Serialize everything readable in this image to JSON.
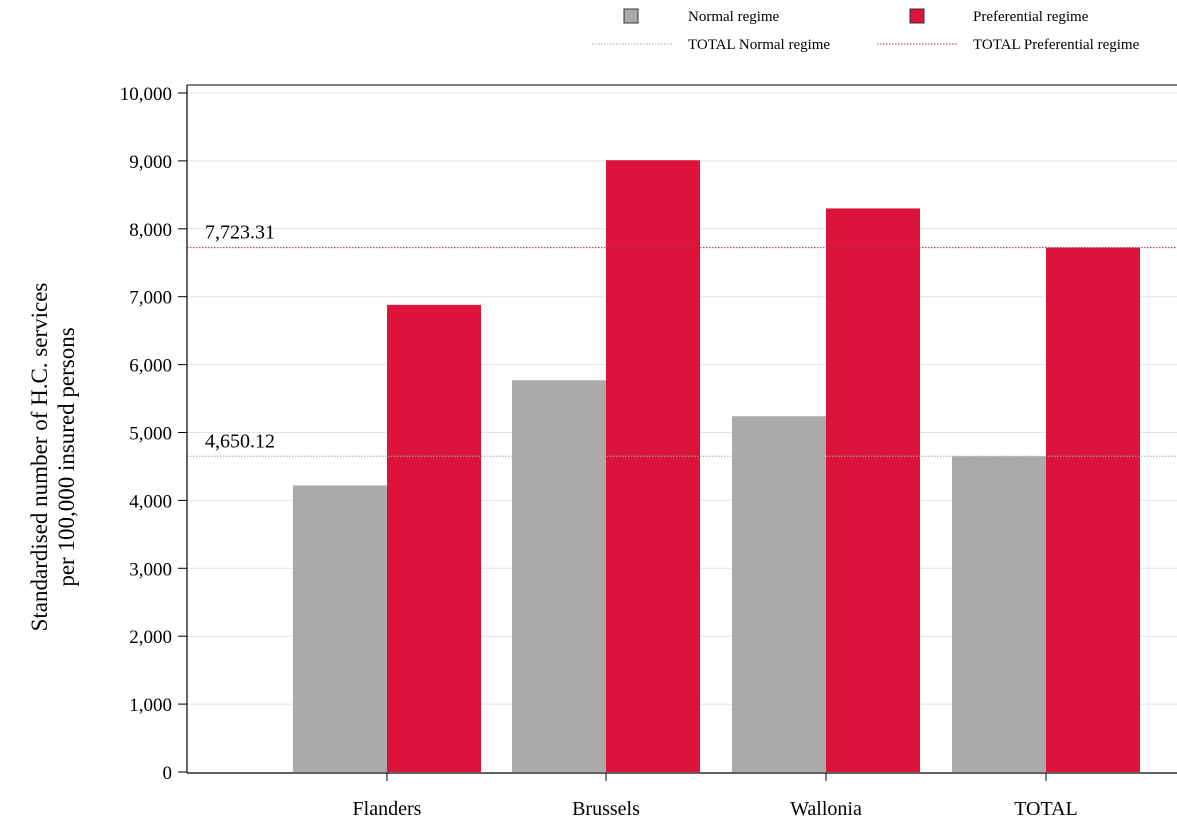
{
  "chart_data": {
    "type": "bar",
    "categories": [
      "Flanders",
      "Brussels",
      "Wallonia",
      "TOTAL"
    ],
    "series": [
      {
        "name": "Normal regime",
        "values": [
          4220,
          5770,
          5240,
          4650.12
        ],
        "color": "#aaaaaa"
      },
      {
        "name": "Preferential regime",
        "values": [
          6880,
          9010,
          8300,
          7723.31
        ],
        "color": "#dc143c"
      }
    ],
    "reference_lines": [
      {
        "name": "TOTAL Normal regime",
        "value": 4650.12,
        "label": "4,650.12",
        "color": "#aaaaaa",
        "style": "dotted"
      },
      {
        "name": "TOTAL Preferential regime",
        "value": 7723.31,
        "label": "7,723.31",
        "color": "#b03050",
        "style": "dotted"
      }
    ],
    "ylabel_line1": "Standardised number of H.C. services",
    "ylabel_line2": "per 100,000 insured persons",
    "xlabel": "",
    "ylim": [
      0,
      10000
    ],
    "yticks": [
      0,
      1000,
      2000,
      3000,
      4000,
      5000,
      6000,
      7000,
      8000,
      9000,
      10000
    ],
    "ytick_labels": [
      "0",
      "1,000",
      "2,000",
      "3,000",
      "4,000",
      "5,000",
      "6,000",
      "7,000",
      "8,000",
      "9,000",
      "10,000"
    ],
    "grid": true,
    "legend_position": "top-right"
  }
}
